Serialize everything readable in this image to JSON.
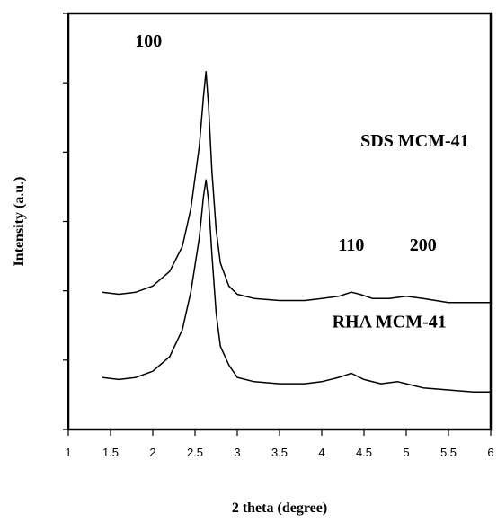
{
  "chart_data": {
    "type": "line",
    "title": "",
    "xlabel": "2 theta (degree)",
    "ylabel": "Intensity (a.u.)",
    "xlim": [
      1,
      6
    ],
    "x_ticks": [
      1,
      1.5,
      2,
      2.5,
      3,
      3.5,
      4,
      4.5,
      5,
      5.5,
      6
    ],
    "x_tick_labels": [
      "1",
      "1.5",
      "2",
      "2.5",
      "3",
      "3.5",
      "4",
      "4.5",
      "5",
      "5.5",
      "6"
    ],
    "y_ticks_count": 6,
    "y_tick_labels_shown": false,
    "grid": false,
    "legend": "none",
    "series": [
      {
        "label": "SDS  MCM-41",
        "color": "#000000",
        "points": [
          [
            1.4,
            0.33
          ],
          [
            1.6,
            0.325
          ],
          [
            1.8,
            0.33
          ],
          [
            2.0,
            0.345
          ],
          [
            2.2,
            0.38
          ],
          [
            2.35,
            0.44
          ],
          [
            2.45,
            0.53
          ],
          [
            2.55,
            0.68
          ],
          [
            2.6,
            0.8
          ],
          [
            2.63,
            0.86
          ],
          [
            2.66,
            0.78
          ],
          [
            2.7,
            0.62
          ],
          [
            2.75,
            0.48
          ],
          [
            2.8,
            0.4
          ],
          [
            2.9,
            0.345
          ],
          [
            3.0,
            0.325
          ],
          [
            3.2,
            0.315
          ],
          [
            3.5,
            0.31
          ],
          [
            3.8,
            0.31
          ],
          [
            4.0,
            0.315
          ],
          [
            4.2,
            0.32
          ],
          [
            4.35,
            0.33
          ],
          [
            4.45,
            0.325
          ],
          [
            4.6,
            0.315
          ],
          [
            4.8,
            0.315
          ],
          [
            5.0,
            0.32
          ],
          [
            5.2,
            0.315
          ],
          [
            5.5,
            0.305
          ],
          [
            5.8,
            0.305
          ],
          [
            6.0,
            0.305
          ]
        ]
      },
      {
        "label": "RHA  MCM-41",
        "color": "#000000",
        "points": [
          [
            1.4,
            0.125
          ],
          [
            1.6,
            0.12
          ],
          [
            1.8,
            0.125
          ],
          [
            2.0,
            0.14
          ],
          [
            2.2,
            0.175
          ],
          [
            2.35,
            0.24
          ],
          [
            2.45,
            0.33
          ],
          [
            2.55,
            0.46
          ],
          [
            2.6,
            0.56
          ],
          [
            2.63,
            0.6
          ],
          [
            2.66,
            0.55
          ],
          [
            2.7,
            0.42
          ],
          [
            2.75,
            0.28
          ],
          [
            2.8,
            0.2
          ],
          [
            2.9,
            0.155
          ],
          [
            3.0,
            0.125
          ],
          [
            3.2,
            0.115
          ],
          [
            3.5,
            0.11
          ],
          [
            3.8,
            0.11
          ],
          [
            4.0,
            0.115
          ],
          [
            4.2,
            0.125
          ],
          [
            4.35,
            0.135
          ],
          [
            4.5,
            0.12
          ],
          [
            4.7,
            0.11
          ],
          [
            4.9,
            0.115
          ],
          [
            5.0,
            0.11
          ],
          [
            5.2,
            0.1
          ],
          [
            5.5,
            0.095
          ],
          [
            5.8,
            0.09
          ],
          [
            6.0,
            0.09
          ]
        ]
      }
    ],
    "annotations": [
      {
        "text": "100",
        "x": 1.95,
        "y": 0.92
      },
      {
        "text": "SDS  MCM-41",
        "x": 5.1,
        "y": 0.68
      },
      {
        "text": "110",
        "x": 4.35,
        "y": 0.43
      },
      {
        "text": "200",
        "x": 5.2,
        "y": 0.43
      },
      {
        "text": "RHA  MCM-41",
        "x": 4.8,
        "y": 0.245
      }
    ]
  }
}
